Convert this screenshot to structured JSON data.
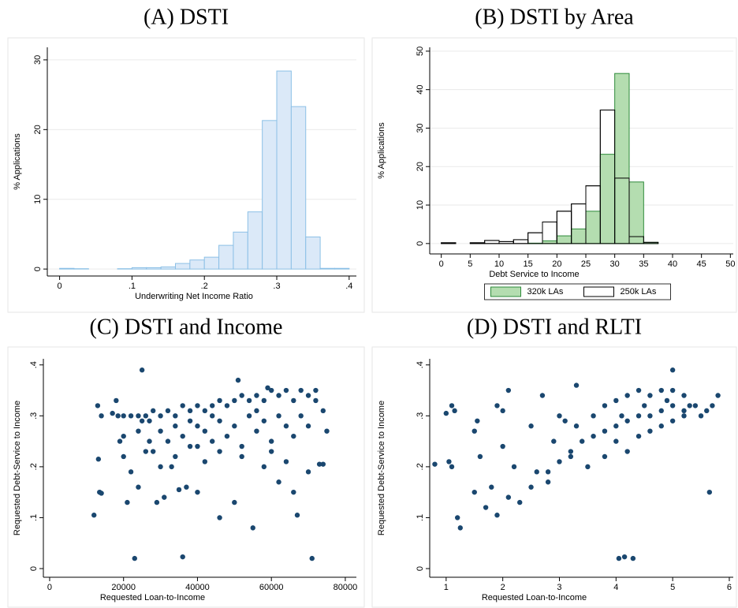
{
  "chart_data": [
    {
      "type": "histogram",
      "title": "(A) DSTI",
      "xlabel": "Underwriting Net Income Ratio",
      "ylabel": "% Applications",
      "bins": [
        0,
        0.02,
        0.04,
        0.06,
        0.08,
        0.1,
        0.12,
        0.14,
        0.16,
        0.18,
        0.2,
        0.22,
        0.24,
        0.26,
        0.28,
        0.3,
        0.32,
        0.34,
        0.36,
        0.38,
        0.4
      ],
      "series": [
        {
          "name": null,
          "color": "#dbe9f8",
          "edgecolor": "#8cc0e6",
          "values": [
            0.1,
            0.05,
            0,
            0,
            0.05,
            0.2,
            0.2,
            0.3,
            0.8,
            1.3,
            1.7,
            3.4,
            5.3,
            8.2,
            21.3,
            28.4,
            23.3,
            4.6,
            0.1,
            0.1
          ]
        }
      ],
      "xlim": [
        -0.017,
        0.41
      ],
      "ylim": [
        -1,
        31.8
      ],
      "xticks": [
        0,
        {
          "value": 0.1,
          "label": ".1"
        },
        {
          "value": 0.2,
          "label": ".2"
        },
        {
          "value": 0.3,
          "label": ".3"
        },
        {
          "value": 0.4,
          "label": ".4"
        }
      ],
      "yticks": [
        0,
        10,
        20,
        30
      ],
      "grid": true
    },
    {
      "type": "histogram",
      "title": "(B) DSTI by Area",
      "xlabel": "Debt Service to Income",
      "ylabel": "% Applications",
      "bins": [
        0,
        2.5,
        5,
        7.5,
        10,
        12.5,
        15,
        17.5,
        20,
        22.5,
        25,
        27.5,
        30,
        32.5,
        35,
        37.5,
        40
      ],
      "series": [
        {
          "name": "320k LAs",
          "color": "#b4ddb0",
          "edgecolor": "#2d8a3a",
          "values": [
            0,
            0,
            0,
            0,
            0,
            0,
            0.1,
            0.7,
            2,
            3.8,
            8.4,
            23.2,
            44.2,
            16,
            0.3,
            0
          ]
        },
        {
          "name": "250k LAs",
          "color": "#ffffff",
          "edgecolor": "#000000",
          "values": [
            0.2,
            0,
            0.2,
            0.8,
            0.5,
            1,
            2.8,
            5.6,
            8.4,
            10.3,
            15,
            34.7,
            17,
            1.8,
            0.3,
            0
          ]
        }
      ],
      "xlim": [
        -2,
        50.5
      ],
      "ylim": [
        -2.7,
        51
      ],
      "xticks": [
        0,
        5,
        10,
        15,
        20,
        25,
        30,
        35,
        40,
        45,
        50
      ],
      "yticks": [
        0,
        10,
        20,
        30,
        40,
        50
      ],
      "grid": true,
      "legend": "bottom"
    },
    {
      "type": "scatter",
      "title": "(C) DSTI and Income",
      "xlabel": "Requested Loan-to-Income",
      "ylabel": "Requested Debt-Service to Income",
      "color": "#1a476f",
      "x": [
        12000,
        13000,
        13200,
        13500,
        14000,
        14000,
        17000,
        18000,
        19000,
        20000,
        20000,
        21000,
        22000,
        23000,
        24000,
        25000,
        26000,
        27000,
        29000,
        30000,
        31000,
        33000,
        35000,
        36000,
        37000,
        40000,
        42000,
        46000,
        50000,
        51000,
        55000,
        58000,
        59000,
        62000,
        66000,
        67000,
        70000,
        71000,
        72000,
        73000,
        74000,
        75000,
        74000,
        18500,
        20000,
        22000,
        24000,
        25000,
        26000,
        28000,
        30000,
        32000,
        34000,
        36000,
        38000,
        40000,
        42000,
        44000,
        46000,
        48000,
        50000,
        52000,
        54000,
        56000,
        58000,
        60000,
        62000,
        64000,
        66000,
        68000,
        70000,
        72000,
        30000,
        32000,
        34000,
        36000,
        38000,
        40000,
        42000,
        44000,
        46000,
        48000,
        50000,
        52000,
        54000,
        56000,
        58000,
        60000,
        62000,
        64000,
        66000,
        68000,
        70000,
        28000,
        34000,
        40000,
        46000,
        52000,
        60000,
        64000,
        24000,
        27000,
        44000,
        56000,
        38000
      ],
      "values": [
        0.105,
        0.32,
        0.215,
        0.15,
        0.148,
        0.3,
        0.305,
        0.33,
        0.25,
        0.22,
        0.26,
        0.13,
        0.19,
        0.02,
        0.16,
        0.39,
        0.23,
        0.25,
        0.13,
        0.2,
        0.14,
        0.2,
        0.155,
        0.023,
        0.16,
        0.15,
        0.21,
        0.1,
        0.13,
        0.37,
        0.08,
        0.2,
        0.355,
        0.17,
        0.15,
        0.105,
        0.19,
        0.02,
        0.35,
        0.205,
        0.205,
        0.27,
        0.31,
        0.3,
        0.3,
        0.3,
        0.3,
        0.29,
        0.3,
        0.31,
        0.3,
        0.31,
        0.3,
        0.32,
        0.31,
        0.32,
        0.31,
        0.32,
        0.33,
        0.32,
        0.33,
        0.34,
        0.33,
        0.34,
        0.33,
        0.35,
        0.34,
        0.35,
        0.33,
        0.35,
        0.34,
        0.33,
        0.27,
        0.25,
        0.28,
        0.26,
        0.24,
        0.28,
        0.27,
        0.25,
        0.29,
        0.26,
        0.28,
        0.24,
        0.3,
        0.27,
        0.29,
        0.25,
        0.3,
        0.28,
        0.26,
        0.3,
        0.28,
        0.23,
        0.22,
        0.24,
        0.23,
        0.22,
        0.23,
        0.21,
        0.27,
        0.29,
        0.3,
        0.31,
        0.29
      ],
      "xlim": [
        -1700,
        83000
      ],
      "ylim": [
        -0.017,
        0.412
      ],
      "xticks": [
        0,
        20000,
        40000,
        60000,
        80000
      ],
      "yticks": [
        0,
        {
          "value": 0.1,
          "label": ".1"
        },
        {
          "value": 0.2,
          "label": ".2"
        },
        {
          "value": 0.3,
          "label": ".3"
        },
        {
          "value": 0.4,
          "label": ".4"
        }
      ],
      "grid": false
    },
    {
      "type": "scatter",
      "title": "(D) DSTI and RLTI",
      "xlabel": "Requested Loan-to-Income",
      "ylabel": "Requested Debt-Service to Income",
      "color": "#1a476f",
      "x": [
        0.8,
        1.0,
        1.05,
        1.1,
        1.1,
        1.15,
        1.2,
        1.25,
        1.5,
        1.5,
        1.55,
        1.6,
        1.7,
        1.8,
        1.9,
        1.9,
        2.0,
        2.0,
        2.1,
        2.1,
        2.2,
        2.3,
        2.5,
        2.6,
        2.7,
        2.8,
        3.0,
        3.2,
        3.3,
        4.05,
        4.15,
        4.3,
        5.0,
        5.65,
        5.8,
        5.5,
        2.5,
        2.8,
        3.0,
        3.2,
        3.4,
        3.6,
        3.8,
        4.0,
        4.2,
        4.4,
        4.6,
        4.8,
        5.0,
        5.2,
        5.4,
        5.6,
        3.6,
        3.8,
        4.0,
        4.2,
        4.4,
        4.6,
        4.8,
        5.0,
        5.2,
        4.0,
        4.2,
        4.4,
        4.6,
        4.8,
        5.0,
        5.2,
        3.5,
        3.8,
        4.1,
        4.5,
        4.9,
        5.3,
        5.7,
        3.3,
        2.9,
        3.1
      ],
      "values": [
        0.205,
        0.305,
        0.21,
        0.2,
        0.32,
        0.31,
        0.1,
        0.08,
        0.15,
        0.27,
        0.29,
        0.22,
        0.12,
        0.16,
        0.105,
        0.32,
        0.24,
        0.31,
        0.35,
        0.14,
        0.2,
        0.13,
        0.28,
        0.19,
        0.34,
        0.17,
        0.3,
        0.22,
        0.36,
        0.02,
        0.023,
        0.02,
        0.39,
        0.15,
        0.34,
        0.3,
        0.16,
        0.19,
        0.21,
        0.23,
        0.25,
        0.26,
        0.27,
        0.28,
        0.29,
        0.3,
        0.3,
        0.31,
        0.32,
        0.31,
        0.32,
        0.31,
        0.3,
        0.32,
        0.33,
        0.34,
        0.35,
        0.34,
        0.35,
        0.35,
        0.34,
        0.25,
        0.23,
        0.26,
        0.27,
        0.28,
        0.29,
        0.3,
        0.2,
        0.22,
        0.3,
        0.32,
        0.33,
        0.32,
        0.32,
        0.28,
        0.25,
        0.29
      ],
      "xlim": [
        0.71,
        6.07
      ],
      "ylim": [
        -0.017,
        0.412
      ],
      "xticks": [
        1,
        2,
        3,
        4,
        5,
        6
      ],
      "yticks": [
        0,
        {
          "value": 0.1,
          "label": ".1"
        },
        {
          "value": 0.2,
          "label": ".2"
        },
        {
          "value": 0.3,
          "label": ".3"
        },
        {
          "value": 0.4,
          "label": ".4"
        }
      ],
      "grid": false
    }
  ]
}
